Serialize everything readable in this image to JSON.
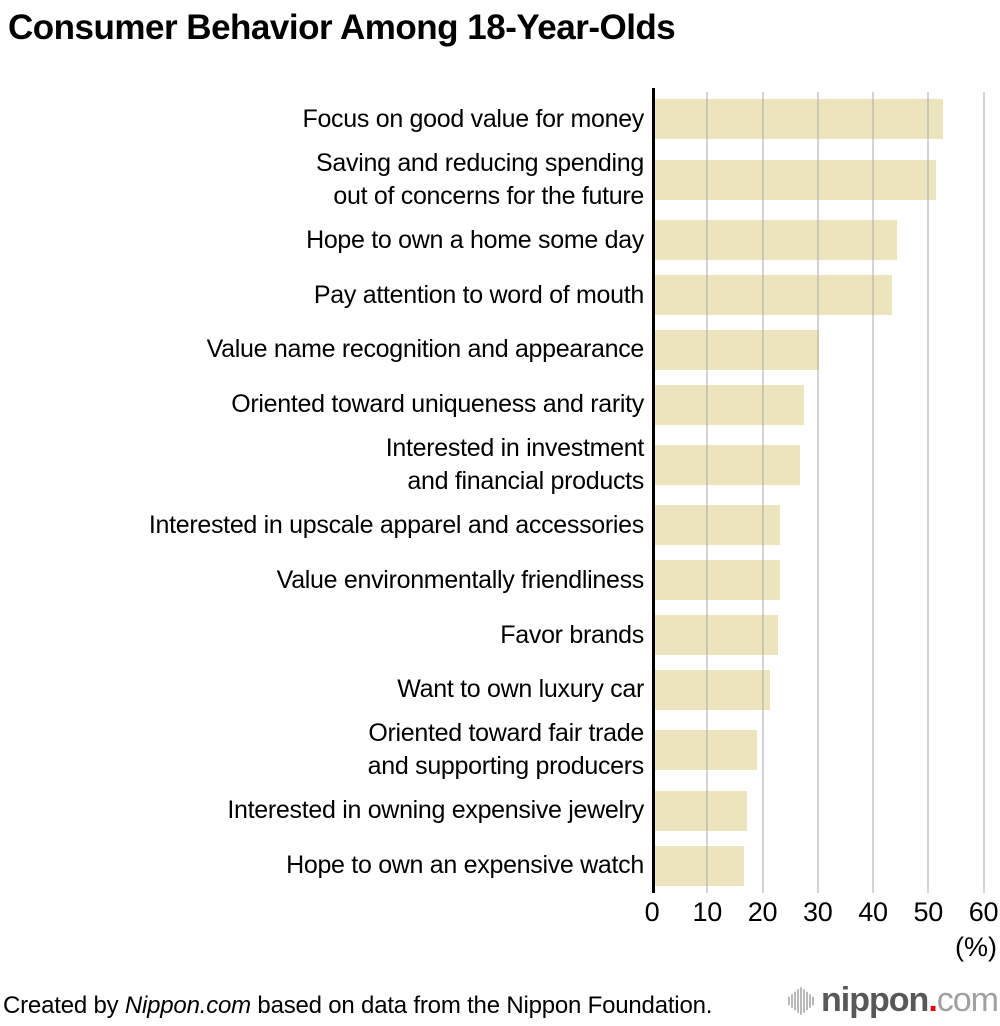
{
  "title": "Consumer Behavior Among 18-Year-Olds",
  "chart_data": {
    "type": "bar",
    "orientation": "horizontal",
    "title": "Consumer Behavior Among 18-Year-Olds",
    "categories": [
      "Focus on good value for money",
      "Saving and reducing spending\nout of concerns for the future",
      "Hope to own a home some day",
      "Pay attention to word of mouth",
      "Value name recognition and appearance",
      "Oriented toward uniqueness and rarity",
      "Interested in investment\nand financial products",
      "Interested in upscale apparel and accessories",
      "Value environmentally friendliness",
      "Favor brands",
      "Want to own luxury car",
      "Oriented toward fair trade\nand supporting producers",
      "Interested in owning expensive jewelry",
      "Hope to own an expensive watch"
    ],
    "values": [
      52.4,
      51.2,
      44.1,
      43.2,
      30.1,
      27.3,
      26.6,
      23.0,
      23.0,
      22.6,
      21.2,
      18.9,
      17.1,
      16.5
    ],
    "xlabel": "(%)",
    "x_ticks": [
      0,
      10,
      20,
      30,
      40,
      50,
      60
    ],
    "xlim": [
      0,
      60
    ],
    "grid": true,
    "legend": "none",
    "bar_color": "#ece4bd",
    "gridline_color": "#d4d4d4",
    "axis_color": "#000000"
  },
  "footer": {
    "credit_prefix": "Created by ",
    "credit_source": "Nippon.com",
    "credit_suffix": " based on data from the Nippon Foundation.",
    "logo": {
      "icon": "waveform-icon",
      "name": "nippon",
      "dot": ".",
      "tld": "com",
      "name_color": "#595757",
      "dot_color": "#e60012",
      "tld_color": "#9fa0a0",
      "icon_color": "#b8b8b8"
    }
  }
}
